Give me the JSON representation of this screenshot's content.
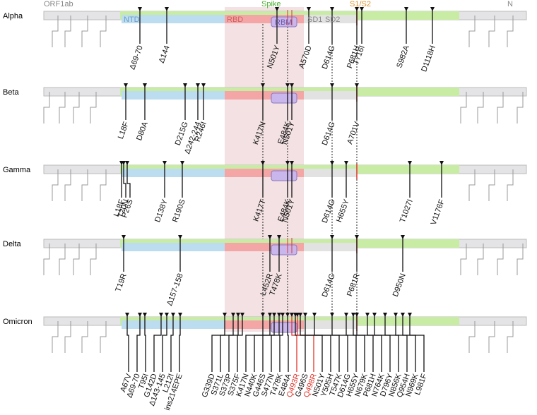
{
  "header": {
    "orf1ab": "ORF1ab",
    "spike": "Spike",
    "s1s2": "S1/S2",
    "n": "N"
  },
  "domains": {
    "ntd": "NTD",
    "rbd": "RBD",
    "rbm": "RBM",
    "sd1": "SD1",
    "sd2": "SD2"
  },
  "variants": [
    {
      "name": "Alpha",
      "mutations": [
        "Δ69-70",
        "Δ144",
        "N501Y",
        "A570D",
        "D614G",
        "P681H",
        "T716I",
        "S982A",
        "D1118H"
      ]
    },
    {
      "name": "Beta",
      "mutations": [
        "L18F",
        "D80A",
        "D215G",
        "Δ242-244",
        "R246I",
        "K417N",
        "E484K",
        "N501Y",
        "D614G",
        "A701V"
      ]
    },
    {
      "name": "Gamma",
      "mutations": [
        "L18F",
        "T20N",
        "P26S",
        "D138Y",
        "R190S",
        "K417T",
        "E484K",
        "N501Y",
        "D614G",
        "H655Y",
        "T1027I",
        "V1176F"
      ]
    },
    {
      "name": "Delta",
      "mutations": [
        "T19R",
        "Δ157-158",
        "L452R",
        "T478K",
        "D614G",
        "P681R",
        "D950N"
      ]
    },
    {
      "name": "Omicron",
      "mutations": [
        "A67V",
        "Δ69-70",
        "T95I",
        "G142D",
        "Δ143-145",
        "L212I",
        "ins214EPE",
        "G339D",
        "S371L",
        "S373P",
        "S375F",
        "K417N",
        "N440K",
        "G446S",
        "S477N",
        "T478K",
        "E484A",
        {
          "label": "Q493R",
          "color": "#e0352b"
        },
        "G496S",
        {
          "label": "Q498R",
          "color": "#e0352b"
        },
        "N501Y",
        "Y505H",
        "T547K",
        "D614G",
        "H655Y",
        "N679K",
        "P681H",
        "N764K",
        "D796Y",
        "N856K",
        "Q954H",
        "N969K",
        "L981F"
      ]
    }
  ]
}
